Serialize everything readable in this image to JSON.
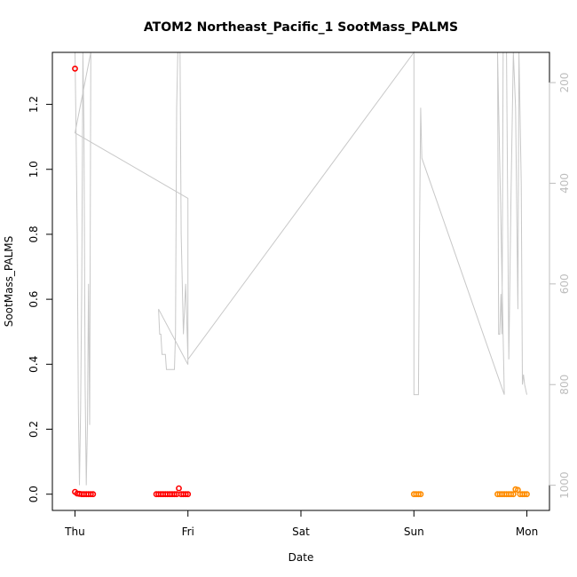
{
  "chart_data": {
    "type": "scatter",
    "title": "ATOM2 Northeast_Pacific_1 SootMass_PALMS",
    "xlabel": "Date",
    "ylabel": "SootMass_PALMS",
    "x_ticks": [
      "Thu",
      "Fri",
      "Sat",
      "Sun",
      "Mon"
    ],
    "xlim_days": [
      -0.2,
      4.2
    ],
    "ylim": [
      -0.05,
      1.36
    ],
    "y_ticks": [
      0.0,
      0.2,
      0.4,
      0.6,
      0.8,
      1.0,
      1.2
    ],
    "right_axis": {
      "ylim": [
        1050,
        140
      ],
      "ticks": [
        200,
        400,
        600,
        800,
        1000
      ],
      "color": "#bdbdbd"
    },
    "colors": {
      "early": "#ff0000",
      "late": "#ff8c00",
      "altitude_line": "#c8c8c8"
    },
    "series": [
      {
        "color": "#ff0000",
        "points": [
          [
            0.0,
            1.31
          ],
          [
            0.0,
            0.007
          ],
          [
            0.02,
            0.002
          ],
          [
            0.04,
            0.001
          ],
          [
            0.06,
            0.0
          ],
          [
            0.08,
            0.0
          ],
          [
            0.1,
            0.0
          ],
          [
            0.12,
            0.0
          ],
          [
            0.14,
            0.0
          ],
          [
            0.16,
            0.0
          ],
          [
            0.72,
            0.0
          ],
          [
            0.74,
            0.0
          ],
          [
            0.76,
            0.0
          ],
          [
            0.78,
            0.0
          ],
          [
            0.8,
            0.0
          ],
          [
            0.82,
            0.0
          ],
          [
            0.84,
            0.0
          ],
          [
            0.86,
            0.0
          ],
          [
            0.88,
            0.0
          ],
          [
            0.9,
            0.0
          ],
          [
            0.92,
            0.018
          ],
          [
            0.94,
            0.0
          ],
          [
            0.96,
            0.0
          ],
          [
            0.98,
            0.0
          ],
          [
            1.0,
            0.0
          ]
        ]
      },
      {
        "color": "#ff8c00",
        "points": [
          [
            3.0,
            0.0
          ],
          [
            3.02,
            0.0
          ],
          [
            3.04,
            0.0
          ],
          [
            3.06,
            0.0
          ],
          [
            3.74,
            0.0
          ],
          [
            3.76,
            0.0
          ],
          [
            3.78,
            0.0
          ],
          [
            3.8,
            0.0
          ],
          [
            3.82,
            0.0
          ],
          [
            3.84,
            0.0
          ],
          [
            3.86,
            0.0
          ],
          [
            3.88,
            0.0
          ],
          [
            3.9,
            0.015
          ],
          [
            3.92,
            0.013
          ],
          [
            3.94,
            0.0
          ],
          [
            3.96,
            0.0
          ],
          [
            3.98,
            0.0
          ],
          [
            4.0,
            0.0
          ]
        ]
      }
    ],
    "altitude_line": [
      [
        0.0,
        130
      ],
      [
        0.01,
        300
      ],
      [
        0.02,
        500
      ],
      [
        0.03,
        850
      ],
      [
        0.04,
        1000
      ],
      [
        0.05,
        850
      ],
      [
        0.06,
        600
      ],
      [
        0.07,
        130
      ],
      [
        0.08,
        300
      ],
      [
        0.09,
        800
      ],
      [
        0.1,
        1000
      ],
      [
        0.11,
        880
      ],
      [
        0.12,
        600
      ],
      [
        0.13,
        880
      ],
      [
        0.14,
        130
      ],
      [
        0.0,
        300
      ],
      [
        1.0,
        430
      ],
      [
        1.0,
        760
      ],
      [
        0.74,
        650
      ],
      [
        0.75,
        700
      ],
      [
        0.76,
        700
      ],
      [
        0.77,
        740
      ],
      [
        0.8,
        740
      ],
      [
        0.81,
        770
      ],
      [
        0.86,
        770
      ],
      [
        0.88,
        770
      ],
      [
        0.89,
        700
      ],
      [
        0.9,
        250
      ],
      [
        0.91,
        130
      ],
      [
        0.93,
        130
      ],
      [
        0.94,
        500
      ],
      [
        0.96,
        700
      ],
      [
        0.98,
        600
      ],
      [
        1.0,
        750
      ],
      [
        3.0,
        130
      ],
      [
        3.0,
        820
      ],
      [
        3.04,
        820
      ],
      [
        3.05,
        500
      ],
      [
        3.06,
        250
      ],
      [
        3.07,
        350
      ],
      [
        3.8,
        820
      ],
      [
        3.74,
        130
      ],
      [
        3.75,
        700
      ],
      [
        3.76,
        700
      ],
      [
        3.77,
        620
      ],
      [
        3.78,
        700
      ],
      [
        3.79,
        130
      ],
      [
        3.82,
        130
      ],
      [
        3.84,
        750
      ],
      [
        3.86,
        420
      ],
      [
        3.88,
        130
      ],
      [
        3.9,
        250
      ],
      [
        3.92,
        650
      ],
      [
        3.93,
        130
      ],
      [
        3.95,
        400
      ],
      [
        3.96,
        800
      ],
      [
        3.97,
        780
      ],
      [
        3.98,
        800
      ],
      [
        4.0,
        820
      ]
    ]
  }
}
